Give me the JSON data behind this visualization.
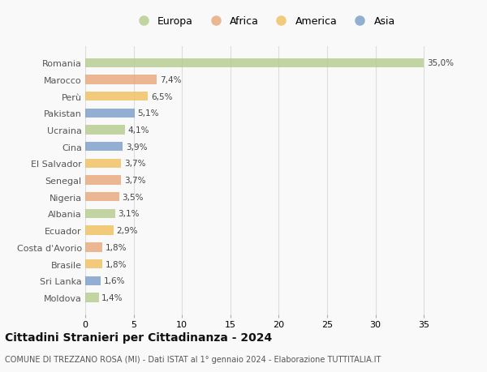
{
  "countries": [
    "Romania",
    "Marocco",
    "Perù",
    "Pakistan",
    "Ucraina",
    "Cina",
    "El Salvador",
    "Senegal",
    "Nigeria",
    "Albania",
    "Ecuador",
    "Costa d'Avorio",
    "Brasile",
    "Sri Lanka",
    "Moldova"
  ],
  "values": [
    35.0,
    7.4,
    6.5,
    5.1,
    4.1,
    3.9,
    3.7,
    3.7,
    3.5,
    3.1,
    2.9,
    1.8,
    1.8,
    1.6,
    1.4
  ],
  "labels": [
    "35,0%",
    "7,4%",
    "6,5%",
    "5,1%",
    "4,1%",
    "3,9%",
    "3,7%",
    "3,7%",
    "3,5%",
    "3,1%",
    "2,9%",
    "1,8%",
    "1,8%",
    "1,6%",
    "1,4%"
  ],
  "continents": [
    "Europa",
    "Africa",
    "America",
    "Asia",
    "Europa",
    "Asia",
    "America",
    "Africa",
    "Africa",
    "Europa",
    "America",
    "Africa",
    "America",
    "Asia",
    "Europa"
  ],
  "colors": {
    "Europa": "#b5cc8e",
    "Africa": "#e8a87c",
    "America": "#f0c060",
    "Asia": "#7b9ec8"
  },
  "legend_order": [
    "Europa",
    "Africa",
    "America",
    "Asia"
  ],
  "title": "Cittadini Stranieri per Cittadinanza - 2024",
  "subtitle": "COMUNE DI TREZZANO ROSA (MI) - Dati ISTAT al 1° gennaio 2024 - Elaborazione TUTTITALIA.IT",
  "xlim": [
    0,
    37
  ],
  "xticks": [
    0,
    5,
    10,
    15,
    20,
    25,
    30,
    35
  ],
  "bg_color": "#f9f9f9",
  "grid_color": "#dddddd",
  "bar_alpha": 0.82
}
